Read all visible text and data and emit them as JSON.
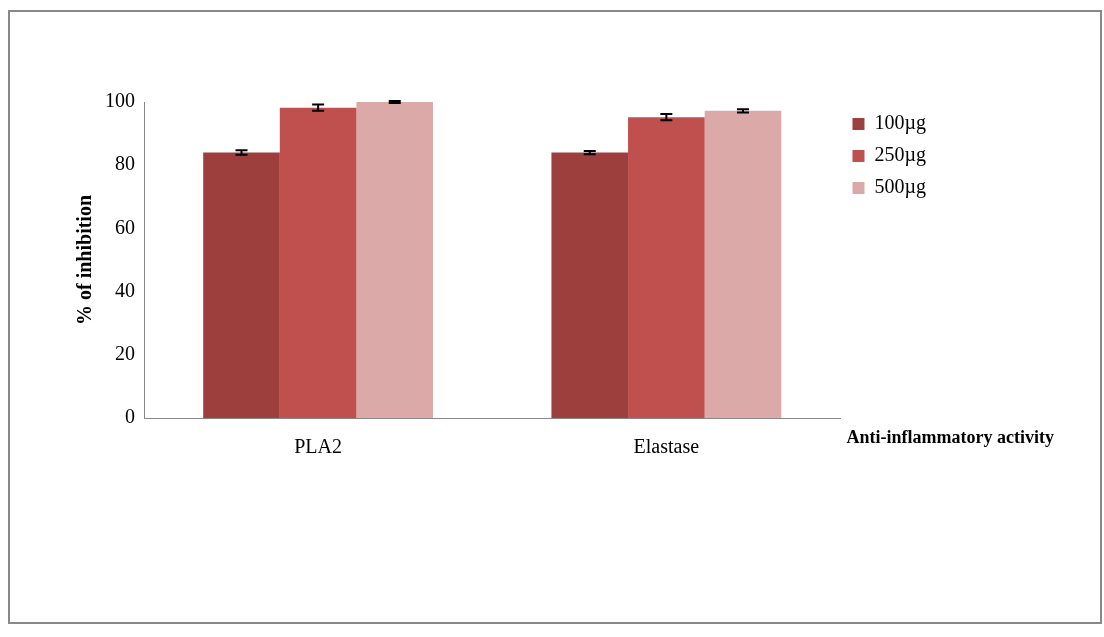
{
  "chart_data": {
    "type": "bar",
    "xlabel": "Anti-inflammatory activity",
    "ylabel": "% of inhibition",
    "categories": [
      "PLA2",
      "Elastase"
    ],
    "series": [
      {
        "name": "100µg",
        "color": "#9c3f3d",
        "values": [
          84,
          84
        ],
        "errors": [
          0.7,
          0.5
        ]
      },
      {
        "name": "250µg",
        "color": "#c0504d",
        "values": [
          98.2,
          95.2
        ],
        "errors": [
          1,
          1
        ]
      },
      {
        "name": "500µg",
        "color": "#dba9a8",
        "values": [
          100,
          97.2
        ],
        "errors": [
          0.3,
          0.5
        ]
      }
    ],
    "ylim": [
      0,
      100
    ],
    "yticks": [
      0,
      20,
      40,
      60,
      80,
      100
    ],
    "grid": false,
    "legend": "right"
  }
}
